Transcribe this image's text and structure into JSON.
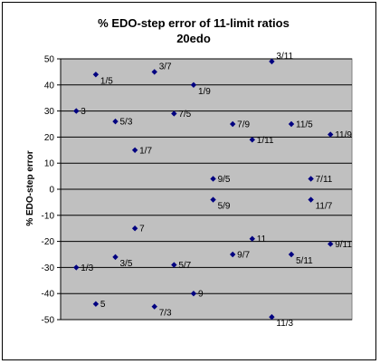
{
  "chart_data": {
    "type": "scatter",
    "title": "% EDO-step error of 11-limit ratios",
    "subtitle": "20edo",
    "xlabel": "",
    "ylabel": "% EDO-step error",
    "ylim": [
      -50,
      50
    ],
    "yticks": [
      -50,
      -40,
      -30,
      -20,
      -10,
      0,
      10,
      20,
      30,
      40,
      50
    ],
    "grid": true,
    "legend": "none",
    "marker_color": "#000080",
    "plot_bg": "#c0c0c0",
    "points": [
      {
        "x": 1,
        "y": 30,
        "label": "3"
      },
      {
        "x": 1,
        "y": -30,
        "label": "1/3"
      },
      {
        "x": 2,
        "y": 44,
        "label": "1/5"
      },
      {
        "x": 2,
        "y": -44,
        "label": "5"
      },
      {
        "x": 3,
        "y": 26,
        "label": "5/3"
      },
      {
        "x": 3,
        "y": -26,
        "label": "3/5"
      },
      {
        "x": 4,
        "y": 15,
        "label": "1/7"
      },
      {
        "x": 4,
        "y": -15,
        "label": "7"
      },
      {
        "x": 5,
        "y": 45,
        "label": "3/7"
      },
      {
        "x": 5,
        "y": -45,
        "label": "7/3"
      },
      {
        "x": 6,
        "y": 29,
        "label": "7/5"
      },
      {
        "x": 6,
        "y": -29,
        "label": "5/7"
      },
      {
        "x": 7,
        "y": 40,
        "label": "1/9"
      },
      {
        "x": 7,
        "y": -40,
        "label": "9"
      },
      {
        "x": 8,
        "y": 4,
        "label": "9/5"
      },
      {
        "x": 8,
        "y": -4,
        "label": "5/9"
      },
      {
        "x": 9,
        "y": 25,
        "label": "7/9"
      },
      {
        "x": 9,
        "y": -25,
        "label": "9/7"
      },
      {
        "x": 10,
        "y": 19,
        "label": "1/11"
      },
      {
        "x": 10,
        "y": -19,
        "label": "11"
      },
      {
        "x": 11,
        "y": 49,
        "label": "3/11"
      },
      {
        "x": 11,
        "y": -49,
        "label": "11/3"
      },
      {
        "x": 12,
        "y": 25,
        "label": "11/5"
      },
      {
        "x": 12,
        "y": -25,
        "label": "5/11"
      },
      {
        "x": 13,
        "y": 4,
        "label": "7/11"
      },
      {
        "x": 13,
        "y": -4,
        "label": "11/7"
      },
      {
        "x": 14,
        "y": 21,
        "label": "11/9"
      },
      {
        "x": 14,
        "y": -21,
        "label": "9/11"
      }
    ]
  }
}
